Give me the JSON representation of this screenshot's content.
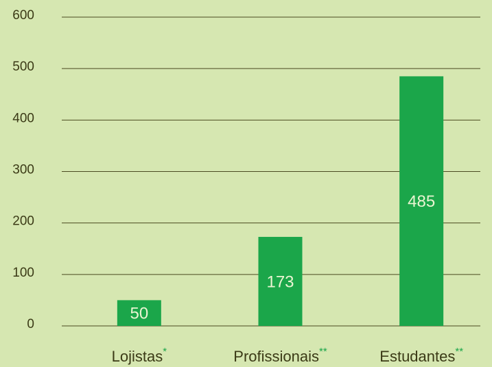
{
  "chart_data": {
    "type": "bar",
    "categories": [
      "Lojistas*",
      "Profissionais**",
      "Estudantes**"
    ],
    "values": [
      50,
      173,
      485
    ],
    "color": "#1ba64a",
    "ylim": [
      0,
      600
    ],
    "yticks": [
      0,
      100,
      200,
      300,
      400,
      500,
      600
    ],
    "grid": true
  }
}
